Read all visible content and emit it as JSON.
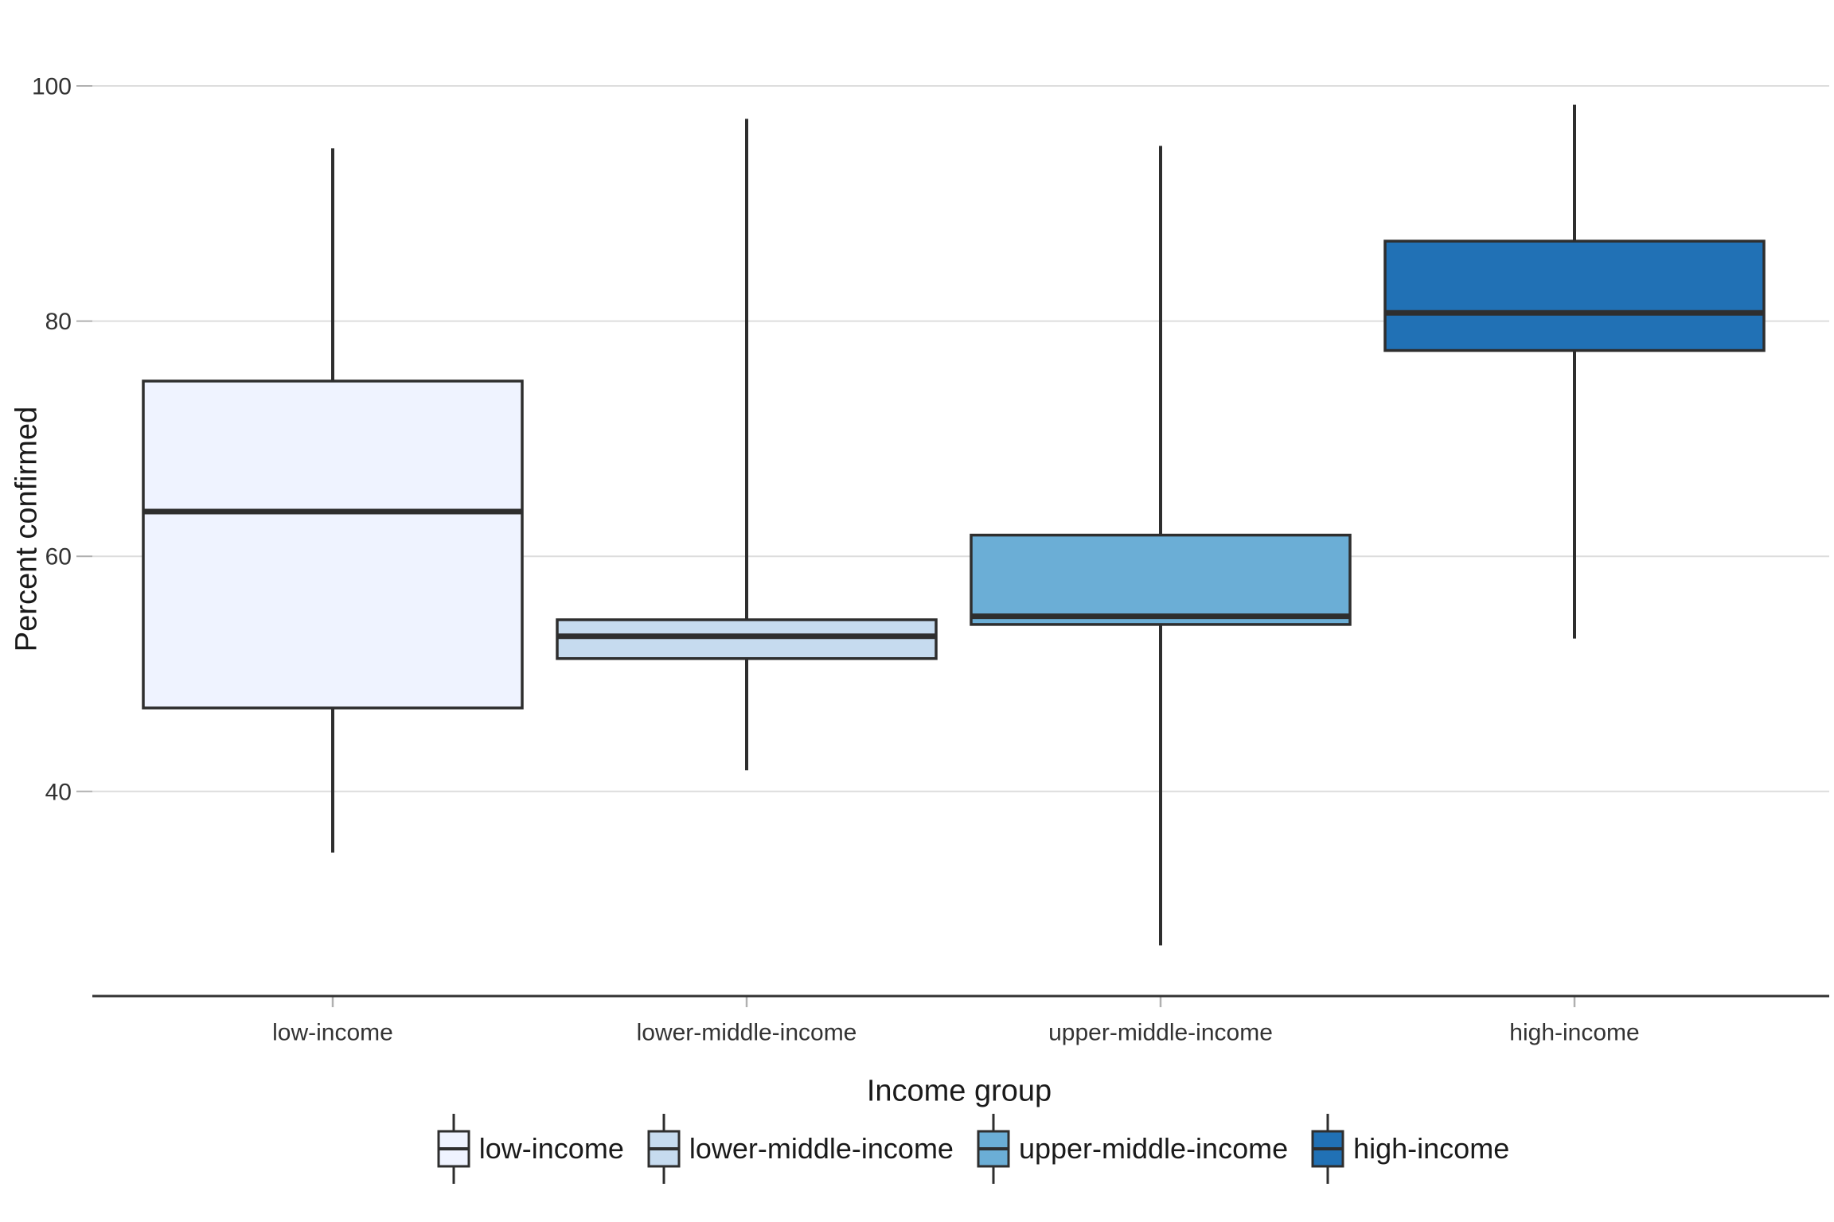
{
  "chart_data": {
    "type": "boxplot",
    "title": "",
    "xlabel": "Income group",
    "ylabel": "Percent confirmed",
    "y_ticks": [
      100,
      80,
      60,
      40
    ],
    "ylim": [
      22,
      104
    ],
    "grid": "horizontal-only",
    "legend_position": "bottom",
    "categories": [
      "low-income",
      "lower-middle-income",
      "upper-middle-income",
      "high-income"
    ],
    "series": [
      {
        "name": "low-income",
        "fill": "#EFF3FF",
        "whisker_low": 34.8,
        "q1": 47.1,
        "median": 63.8,
        "q3": 74.9,
        "whisker_high": 94.7
      },
      {
        "name": "lower-middle-income",
        "fill": "#C6DBEF",
        "whisker_low": 41.8,
        "q1": 51.3,
        "median": 53.2,
        "q3": 54.6,
        "whisker_high": 97.2
      },
      {
        "name": "upper-middle-income",
        "fill": "#6BAED6",
        "whisker_low": 26.9,
        "q1": 54.2,
        "median": 54.9,
        "q3": 61.8,
        "whisker_high": 94.9
      },
      {
        "name": "high-income",
        "fill": "#2171B5",
        "whisker_low": 53.0,
        "q1": 77.5,
        "median": 80.7,
        "q3": 86.8,
        "whisker_high": 98.4
      }
    ],
    "colors": {
      "box_border": "#2E2E2E",
      "median_line": "#2E2E2E",
      "whisker": "#2E2E2E",
      "gridline": "#DDDDDD",
      "axis_line": "#333333",
      "tick_mark": "#B0B0B0",
      "background": "#FFFFFF"
    }
  }
}
